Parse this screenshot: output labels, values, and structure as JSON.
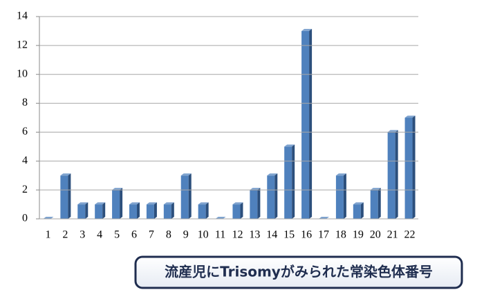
{
  "chart_data": {
    "type": "bar",
    "title": "流産児にTrisomyがみられた常染色体番号",
    "categories": [
      "1",
      "2",
      "3",
      "4",
      "5",
      "6",
      "7",
      "8",
      "9",
      "10",
      "11",
      "12",
      "13",
      "14",
      "15",
      "16",
      "17",
      "18",
      "19",
      "20",
      "21",
      "22"
    ],
    "values": [
      0,
      3,
      1,
      1,
      2,
      1,
      1,
      1,
      3,
      1,
      0,
      1,
      2,
      3,
      5,
      13,
      0,
      3,
      1,
      2,
      6,
      7
    ],
    "color": "#4f81bd",
    "ylim": [
      0,
      14
    ],
    "yticks": [
      0,
      2,
      4,
      6,
      8,
      10,
      12,
      14
    ],
    "grid": true
  }
}
